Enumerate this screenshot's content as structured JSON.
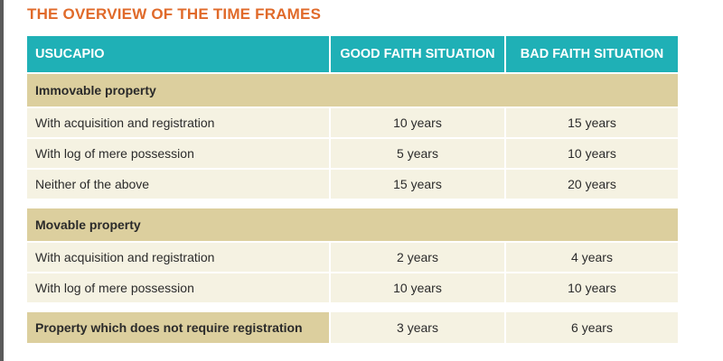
{
  "title": "THE OVERVIEW OF THE TIME FRAMES",
  "header": {
    "col1": "USUCAPIO",
    "col2": "GOOD FAITH SITUATION",
    "col3": "BAD FAITH SITUATION"
  },
  "immovable": {
    "label": "Immovable property",
    "rows": [
      {
        "label": "With acquisition and registration",
        "good": "10 years",
        "bad": "15 years"
      },
      {
        "label": "With log of mere possession",
        "good": "5 years",
        "bad": "10 years"
      },
      {
        "label": "Neither of the above",
        "good": "15 years",
        "bad": "20 years"
      }
    ]
  },
  "movable": {
    "label": "Movable property",
    "rows": [
      {
        "label": "With acquisition and registration",
        "good": "2 years",
        "bad": "4 years"
      },
      {
        "label": "With log of mere possession",
        "good": "10 years",
        "bad": "10 years"
      }
    ]
  },
  "summary": {
    "label": "Property which does not require registration",
    "good": "3 years",
    "bad": "6 years"
  },
  "colors": {
    "accent": "#1fb0b6",
    "title": "#e06a2a",
    "section": "#dccf9e",
    "row": "#f5f2e2"
  }
}
